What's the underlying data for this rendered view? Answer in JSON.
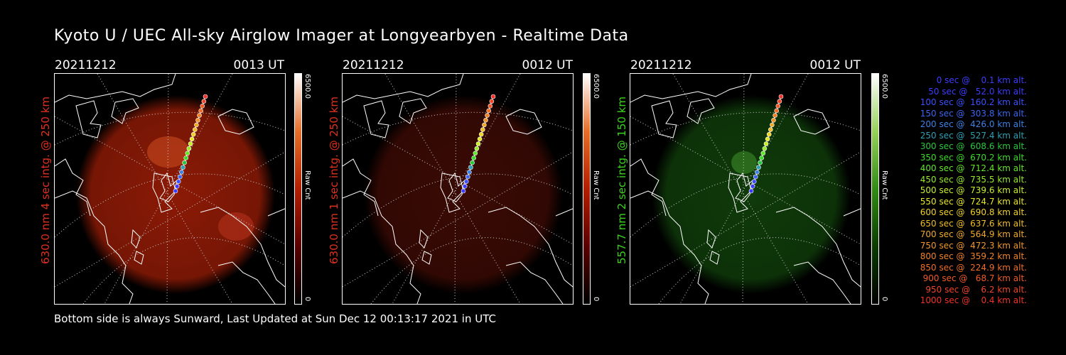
{
  "title": "Kyoto U / UEC All-sky Airglow Imager at Longyearbyen - Realtime Data",
  "footer": "Bottom side is always Sunward, Last Updated at Sun Dec 12 00:13:17 2021 in UTC",
  "panels": [
    {
      "date": "20211212",
      "time": "0013 UT",
      "ylabel": "630.0 nm 4 sec intg. @ 250 km",
      "ylabel_color": "#e0301e",
      "cbar_max": "6500.0",
      "cbar_min": "0",
      "cbar_unit": "Raw Cnt",
      "glow_color": "#8b1a06"
    },
    {
      "date": "20211212",
      "time": "0012 UT",
      "ylabel": "630.0 nm 1 sec intg. @ 250 km",
      "ylabel_color": "#e0301e",
      "cbar_max": "6500.0",
      "cbar_min": "0",
      "cbar_unit": "Raw Cnt",
      "glow_color": "#3a0a04"
    },
    {
      "date": "20211212",
      "time": "0012 UT",
      "ylabel": "557.7 nm 2 sec intg. @ 150 km",
      "ylabel_color": "#3cd21e",
      "cbar_max": "6500.0",
      "cbar_min": "0",
      "cbar_unit": "Raw Cnt",
      "glow_color": "#0f3a0a"
    }
  ],
  "legend": [
    {
      "text": "0 sec @    0.1 km alt.",
      "color": "#3c3cff"
    },
    {
      "text": "50 sec @   52.0 km alt.",
      "color": "#3c3cff"
    },
    {
      "text": "100 sec @  160.2 km alt.",
      "color": "#3c50ff"
    },
    {
      "text": "150 sec @  303.8 km alt.",
      "color": "#3c64f0"
    },
    {
      "text": "200 sec @  426.0 km alt.",
      "color": "#3c82e6"
    },
    {
      "text": "250 sec @  527.4 km alt.",
      "color": "#2da0b4"
    },
    {
      "text": "300 sec @  608.6 km alt.",
      "color": "#28c83c"
    },
    {
      "text": "350 sec @  670.2 km alt.",
      "color": "#3cdc28"
    },
    {
      "text": "400 sec @  712.4 km alt.",
      "color": "#64e628"
    },
    {
      "text": "450 sec @  735.5 km alt.",
      "color": "#96ea28"
    },
    {
      "text": "500 sec @  739.6 km alt.",
      "color": "#c8ee28"
    },
    {
      "text": "550 sec @  724.7 km alt.",
      "color": "#e6e628"
    },
    {
      "text": "600 sec @  690.8 km alt.",
      "color": "#f0d228"
    },
    {
      "text": "650 sec @  637.6 km alt.",
      "color": "#f0be28"
    },
    {
      "text": "700 sec @  564.9 km alt.",
      "color": "#f0aa28"
    },
    {
      "text": "750 sec @  472.3 km alt.",
      "color": "#f09628"
    },
    {
      "text": "800 sec @  359.2 km alt.",
      "color": "#f08228"
    },
    {
      "text": "850 sec @  224.9 km alt.",
      "color": "#f06e28"
    },
    {
      "text": "900 sec @   68.7 km alt.",
      "color": "#f05a28"
    },
    {
      "text": "950 sec @    6.2 km alt.",
      "color": "#f04628"
    },
    {
      "text": "1000 sec @    0.4 km alt.",
      "color": "#f03228"
    }
  ]
}
